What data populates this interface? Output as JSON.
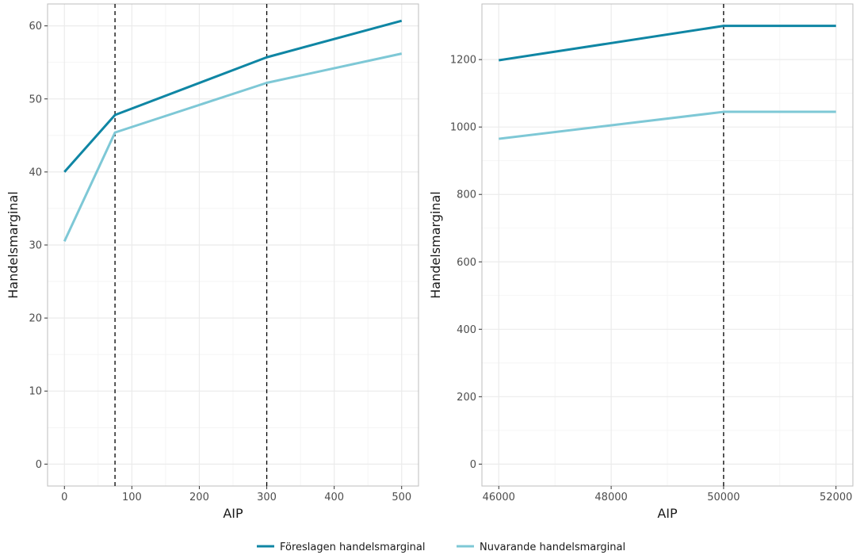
{
  "colors": {
    "foreslagen": "#0f86a4",
    "nuvarande": "#7ec8d6",
    "grid_major": "#ebebeb",
    "grid_minor": "#f3f3f3",
    "panel_border": "#bdbdbd",
    "vline": "#000000"
  },
  "legend": {
    "foreslagen": "Föreslagen handelsmarginal",
    "nuvarande": "Nuvarande handelsmarginal",
    "position": "bottom"
  },
  "chart_data": [
    {
      "type": "line",
      "xlabel": "AIP",
      "ylabel": "Handelsmarginal",
      "xlim": [
        -25,
        525
      ],
      "ylim": [
        -3,
        63
      ],
      "x_ticks": [
        0,
        100,
        200,
        300,
        400,
        500
      ],
      "x_tick_labels": [
        "0",
        "100",
        "200",
        "300",
        "400",
        "500"
      ],
      "y_ticks": [
        0,
        10,
        20,
        30,
        40,
        50,
        60
      ],
      "y_tick_labels": [
        "0",
        "10",
        "20",
        "30",
        "40",
        "50",
        "60"
      ],
      "grid": true,
      "vlines": [
        75,
        300
      ],
      "series": [
        {
          "name": "Föreslagen handelsmarginal",
          "x": [
            0,
            75,
            300,
            500
          ],
          "y": [
            40,
            47.8,
            55.7,
            60.7
          ]
        },
        {
          "name": "Nuvarande handelsmarginal",
          "x": [
            0,
            75,
            300,
            500
          ],
          "y": [
            30.5,
            45.4,
            52.2,
            56.2
          ]
        }
      ]
    },
    {
      "type": "line",
      "xlabel": "AIP",
      "ylabel": "Handelsmarginal",
      "xlim": [
        45700,
        52300
      ],
      "ylim": [
        -65,
        1365
      ],
      "x_ticks": [
        46000,
        48000,
        50000,
        52000
      ],
      "x_tick_labels": [
        "46000",
        "48000",
        "50000",
        "52000"
      ],
      "y_ticks": [
        0,
        200,
        400,
        600,
        800,
        1000,
        1200
      ],
      "y_tick_labels": [
        "0",
        "200",
        "400",
        "600",
        "800",
        "1000",
        "1200"
      ],
      "grid": true,
      "vlines": [
        50000
      ],
      "series": [
        {
          "name": "Föreslagen handelsmarginal",
          "x": [
            46000,
            50000,
            52000
          ],
          "y": [
            1198,
            1300,
            1300
          ]
        },
        {
          "name": "Nuvarande handelsmarginal",
          "x": [
            46000,
            50000,
            52000
          ],
          "y": [
            965,
            1045,
            1045
          ]
        }
      ]
    }
  ]
}
